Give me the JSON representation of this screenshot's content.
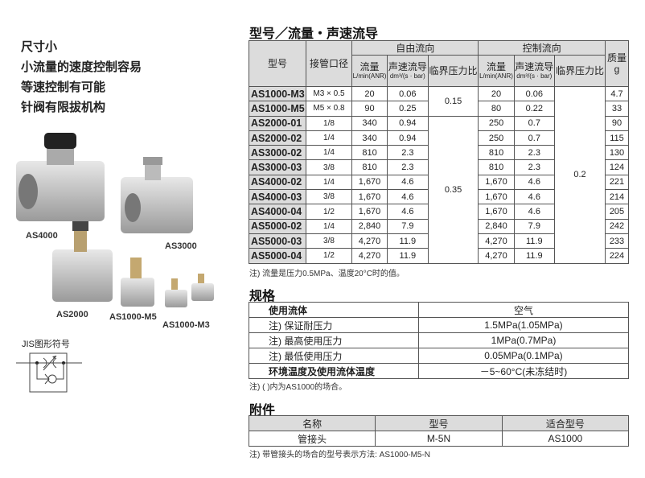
{
  "features": [
    "尺寸小",
    "小流量的速度控制容易",
    "等速控制有可能",
    "针阀有限拔机构"
  ],
  "products": [
    "AS4000",
    "AS3000",
    "AS2000",
    "AS1000-M5",
    "AS1000-M3"
  ],
  "jis_label": "JIS图形符号",
  "main_table": {
    "title": "型号／流量・声速流导",
    "headers": {
      "model": "型号",
      "port": "接管口径",
      "free": "自由流向",
      "control": "控制流向",
      "flow": "流量",
      "flow_unit": "L/min(ANR)",
      "sonic": "声速流导",
      "sonic_unit": "dm³/(s · bar)",
      "critical": "临界压力比",
      "mass": "质量",
      "mass_unit": "g"
    },
    "rows": [
      {
        "model": "AS1000-M3",
        "port": "M3 × 0.5",
        "free_flow": "20",
        "free_sonic": "0.06",
        "ctrl_flow": "20",
        "ctrl_sonic": "0.06",
        "mass": "4.7"
      },
      {
        "model": "AS1000-M5",
        "port": "M5 × 0.8",
        "free_flow": "90",
        "free_sonic": "0.25",
        "ctrl_flow": "80",
        "ctrl_sonic": "0.22",
        "mass": "33"
      },
      {
        "model": "AS2000-01",
        "port": "1/8",
        "free_flow": "340",
        "free_sonic": "0.94",
        "ctrl_flow": "250",
        "ctrl_sonic": "0.7",
        "mass": "90"
      },
      {
        "model": "AS2000-02",
        "port": "1/4",
        "free_flow": "340",
        "free_sonic": "0.94",
        "ctrl_flow": "250",
        "ctrl_sonic": "0.7",
        "mass": "115"
      },
      {
        "model": "AS3000-02",
        "port": "1/4",
        "free_flow": "810",
        "free_sonic": "2.3",
        "ctrl_flow": "810",
        "ctrl_sonic": "2.3",
        "mass": "130"
      },
      {
        "model": "AS3000-03",
        "port": "3/8",
        "free_flow": "810",
        "free_sonic": "2.3",
        "ctrl_flow": "810",
        "ctrl_sonic": "2.3",
        "mass": "124"
      },
      {
        "model": "AS4000-02",
        "port": "1/4",
        "free_flow": "1,670",
        "free_sonic": "4.6",
        "ctrl_flow": "1,670",
        "ctrl_sonic": "4.6",
        "mass": "221"
      },
      {
        "model": "AS4000-03",
        "port": "3/8",
        "free_flow": "1,670",
        "free_sonic": "4.6",
        "ctrl_flow": "1,670",
        "ctrl_sonic": "4.6",
        "mass": "214"
      },
      {
        "model": "AS4000-04",
        "port": "1/2",
        "free_flow": "1,670",
        "free_sonic": "4.6",
        "ctrl_flow": "1,670",
        "ctrl_sonic": "4.6",
        "mass": "205"
      },
      {
        "model": "AS5000-02",
        "port": "1/4",
        "free_flow": "2,840",
        "free_sonic": "7.9",
        "ctrl_flow": "2,840",
        "ctrl_sonic": "7.9",
        "mass": "242"
      },
      {
        "model": "AS5000-03",
        "port": "3/8",
        "free_flow": "4,270",
        "free_sonic": "11.9",
        "ctrl_flow": "4,270",
        "ctrl_sonic": "11.9",
        "mass": "233"
      },
      {
        "model": "AS5000-04",
        "port": "1/2",
        "free_flow": "4,270",
        "free_sonic": "11.9",
        "ctrl_flow": "4,270",
        "ctrl_sonic": "11.9",
        "mass": "224"
      }
    ],
    "free_critical": [
      {
        "value": "0.15",
        "rows": 2
      },
      {
        "value": "0.35",
        "rows": 10
      }
    ],
    "ctrl_critical": "0.2",
    "note": "注) 流量是压力0.5MPa、温度20°C时的值。"
  },
  "spec": {
    "title": "规格",
    "rows": [
      {
        "key": "使用流体",
        "value": "空气",
        "bold": true
      },
      {
        "key": "注) 保证耐压力",
        "value": "1.5MPa(1.05MPa)"
      },
      {
        "key": "注) 最高使用压力",
        "value": "1MPa(0.7MPa)"
      },
      {
        "key": "注) 最低使用压力",
        "value": "0.05MPa(0.1MPa)"
      },
      {
        "key": "环境温度及使用流体温度",
        "value": "－5~60°C(未冻结时)",
        "bold": true
      }
    ],
    "note": "注) (    )内为AS1000的场合。"
  },
  "accessories": {
    "title": "附件",
    "headers": [
      "名称",
      "型号",
      "适合型号"
    ],
    "row": [
      "管接头",
      "M-5N",
      "AS1000"
    ],
    "note": "注) 带管接头的场合的型号表示方法: AS1000-M5-N"
  }
}
